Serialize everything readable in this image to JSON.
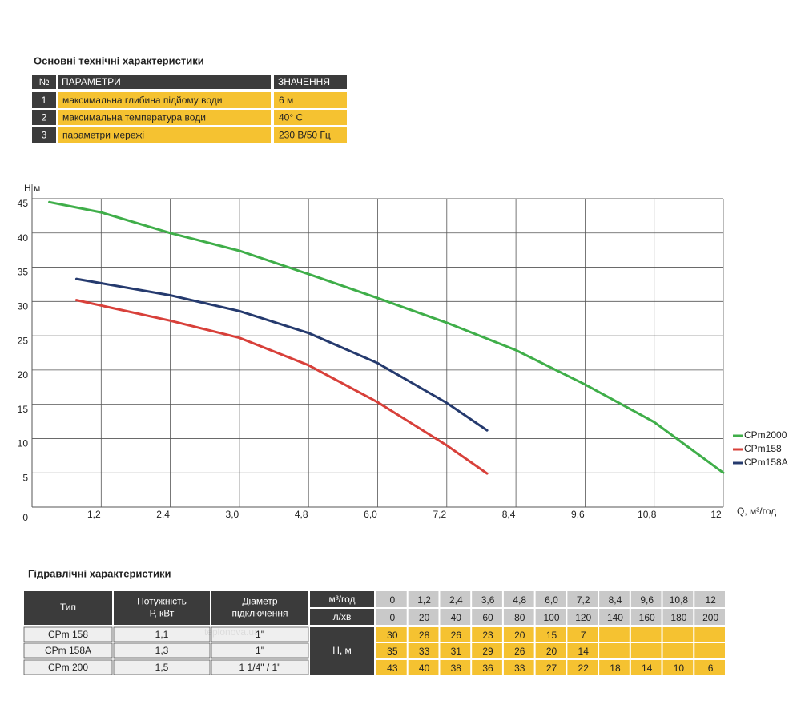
{
  "spec_table": {
    "title": "Основні технічні характеристики",
    "header": [
      "№",
      "ПАРАМЕТРИ",
      "ЗНАЧЕННЯ"
    ],
    "rows": [
      [
        "1",
        "максимальна глибина підйому води",
        "6 м"
      ],
      [
        "2",
        "максимальна температура води",
        "40° C"
      ],
      [
        "3",
        "параметри мережі",
        "230 В/50 Гц"
      ]
    ]
  },
  "chart_data": {
    "type": "line",
    "y_label": "H м",
    "x_label": "Q,  м³/год",
    "x_labels": [
      "1,2",
      "2,4",
      "3,0",
      "4,8",
      "6,0",
      "7,2",
      "8,4",
      "9,6",
      "10,8",
      "12"
    ],
    "xlim": [
      0,
      12
    ],
    "ylim": [
      0,
      45
    ],
    "yticks": [
      0,
      5,
      10,
      15,
      20,
      25,
      30,
      35,
      40,
      45
    ],
    "grid": true,
    "legend": "right",
    "series": [
      {
        "name": "CPm2000",
        "color": "#3fae49",
        "x": [
          0.3,
          1.2,
          2.4,
          3.6,
          4.8,
          6.0,
          7.2,
          8.4,
          9.6,
          10.8,
          12
        ],
        "values": [
          44.5,
          43.0,
          40.0,
          37.4,
          34.0,
          30.5,
          26.9,
          22.9,
          17.9,
          12.4,
          5.0
        ]
      },
      {
        "name": "CPm158",
        "color": "#d8403a",
        "x": [
          0.77,
          2.4,
          3.6,
          4.8,
          6.0,
          7.2,
          7.9
        ],
        "values": [
          30.2,
          27.2,
          24.7,
          20.7,
          15.3,
          9.0,
          4.9
        ]
      },
      {
        "name": "CPm158A",
        "color": "#253a6e",
        "x": [
          0.77,
          2.4,
          3.6,
          4.8,
          6.0,
          7.2,
          7.9
        ],
        "values": [
          33.3,
          30.9,
          28.6,
          25.4,
          21.0,
          15.2,
          11.2
        ]
      }
    ]
  },
  "hydraulic_table": {
    "title": "Гідравлічні характеристики",
    "header": [
      [
        "Тип"
      ],
      [
        "Потужність",
        "Р, кВт"
      ],
      [
        "Діаметр",
        "підключення"
      ]
    ],
    "flow_units": [
      "м³/год",
      "л/хв"
    ],
    "head_unit": "Н, м",
    "flow_m3h": [
      "0",
      "1,2",
      "2,4",
      "3,6",
      "4,8",
      "6,0",
      "7,2",
      "8,4",
      "9,6",
      "10,8",
      "12"
    ],
    "flow_lpm": [
      "0",
      "20",
      "40",
      "60",
      "80",
      "100",
      "120",
      "140",
      "160",
      "180",
      "200"
    ],
    "rows": [
      {
        "type": "CPm 158",
        "power": "1,1",
        "connection": "1\"",
        "head": [
          30,
          28,
          26,
          23,
          20,
          15,
          7,
          null,
          null,
          null,
          null
        ]
      },
      {
        "type": "CPm 158A",
        "power": "1,3",
        "connection": "1\"",
        "head": [
          35,
          33,
          31,
          29,
          26,
          20,
          14,
          null,
          null,
          null,
          null
        ]
      },
      {
        "type": "CPm 200",
        "power": "1,5",
        "connection": "1 1/4\" / 1\"",
        "head": [
          43,
          40,
          38,
          36,
          33,
          27,
          22,
          18,
          14,
          10,
          6
        ]
      }
    ]
  },
  "watermark": "teplonova.ua"
}
